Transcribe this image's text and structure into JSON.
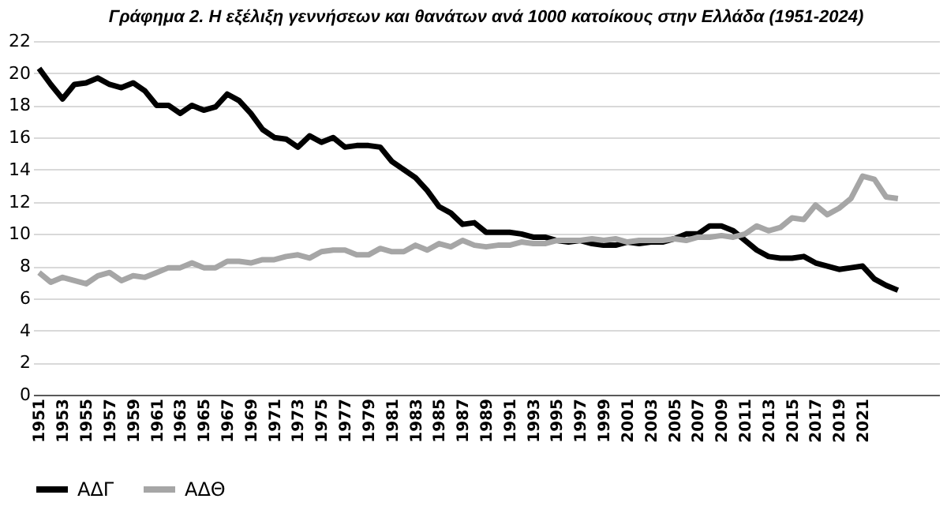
{
  "chart_data": {
    "type": "line",
    "title": "Γράφημα 2.  Η εξέλιξη γεννήσεων και θανάτων ανά 1000 κατοίκους στην Ελλάδα (1951-2024)",
    "categories": [
      "1951",
      null,
      "1953",
      null,
      "1955",
      null,
      "1957",
      null,
      "1959",
      null,
      "1961",
      null,
      "1963",
      null,
      "1965",
      null,
      "1967",
      null,
      "1969",
      null,
      "1971",
      null,
      "1973",
      null,
      "1975",
      null,
      "1977",
      null,
      "1979",
      null,
      "1981",
      null,
      "1983",
      null,
      "1985",
      null,
      "1987",
      null,
      "1989",
      null,
      "1991",
      null,
      "1993",
      null,
      "1995",
      null,
      "1997",
      null,
      "1999",
      null,
      "2001",
      null,
      "2003",
      null,
      "2005",
      null,
      "2007",
      null,
      "2009",
      null,
      "2011",
      null,
      "2013",
      null,
      "2015",
      null,
      "2017",
      null,
      "2019",
      null,
      "2021",
      null,
      null,
      null
    ],
    "series": [
      {
        "name": "ΑΔΓ",
        "color": "#000000",
        "values": [
          20.3,
          19.3,
          18.4,
          19.3,
          19.4,
          19.7,
          19.3,
          19.1,
          19.4,
          18.9,
          18.0,
          18.0,
          17.5,
          18.0,
          17.7,
          17.9,
          18.7,
          18.3,
          17.5,
          16.5,
          16.0,
          15.9,
          15.4,
          16.1,
          15.7,
          16.0,
          15.4,
          15.5,
          15.5,
          15.4,
          14.5,
          14.0,
          13.5,
          12.7,
          11.7,
          11.3,
          10.6,
          10.7,
          10.1,
          10.1,
          10.1,
          10.0,
          9.8,
          9.8,
          9.6,
          9.5,
          9.6,
          9.4,
          9.3,
          9.3,
          9.5,
          9.4,
          9.5,
          9.5,
          9.7,
          10.0,
          10.0,
          10.5,
          10.5,
          10.2,
          9.6,
          9.0,
          8.6,
          8.5,
          8.5,
          8.6,
          8.2,
          8.0,
          7.8,
          7.9,
          8.0,
          7.2,
          6.8,
          6.5
        ]
      },
      {
        "name": "ΑΔΘ",
        "color": "#a6a6a6",
        "values": [
          7.6,
          7.0,
          7.3,
          7.1,
          6.9,
          7.4,
          7.6,
          7.1,
          7.4,
          7.3,
          7.6,
          7.9,
          7.9,
          8.2,
          7.9,
          7.9,
          8.3,
          8.3,
          8.2,
          8.4,
          8.4,
          8.6,
          8.7,
          8.5,
          8.9,
          9.0,
          9.0,
          8.7,
          8.7,
          9.1,
          8.9,
          8.9,
          9.3,
          9.0,
          9.4,
          9.2,
          9.6,
          9.3,
          9.2,
          9.3,
          9.3,
          9.5,
          9.4,
          9.4,
          9.6,
          9.6,
          9.6,
          9.7,
          9.6,
          9.7,
          9.5,
          9.6,
          9.6,
          9.6,
          9.7,
          9.6,
          9.8,
          9.8,
          9.9,
          9.8,
          10.0,
          10.5,
          10.2,
          10.4,
          11.0,
          10.9,
          11.8,
          11.2,
          11.6,
          12.2,
          13.6,
          13.4,
          12.3,
          12.2
        ]
      }
    ],
    "ylim": [
      0,
      22
    ],
    "yticks": [
      0,
      2,
      4,
      6,
      8,
      10,
      12,
      14,
      16,
      18,
      20,
      22
    ],
    "grid": "y",
    "legend": "bottom",
    "marker": "none",
    "line_style": "solid"
  }
}
